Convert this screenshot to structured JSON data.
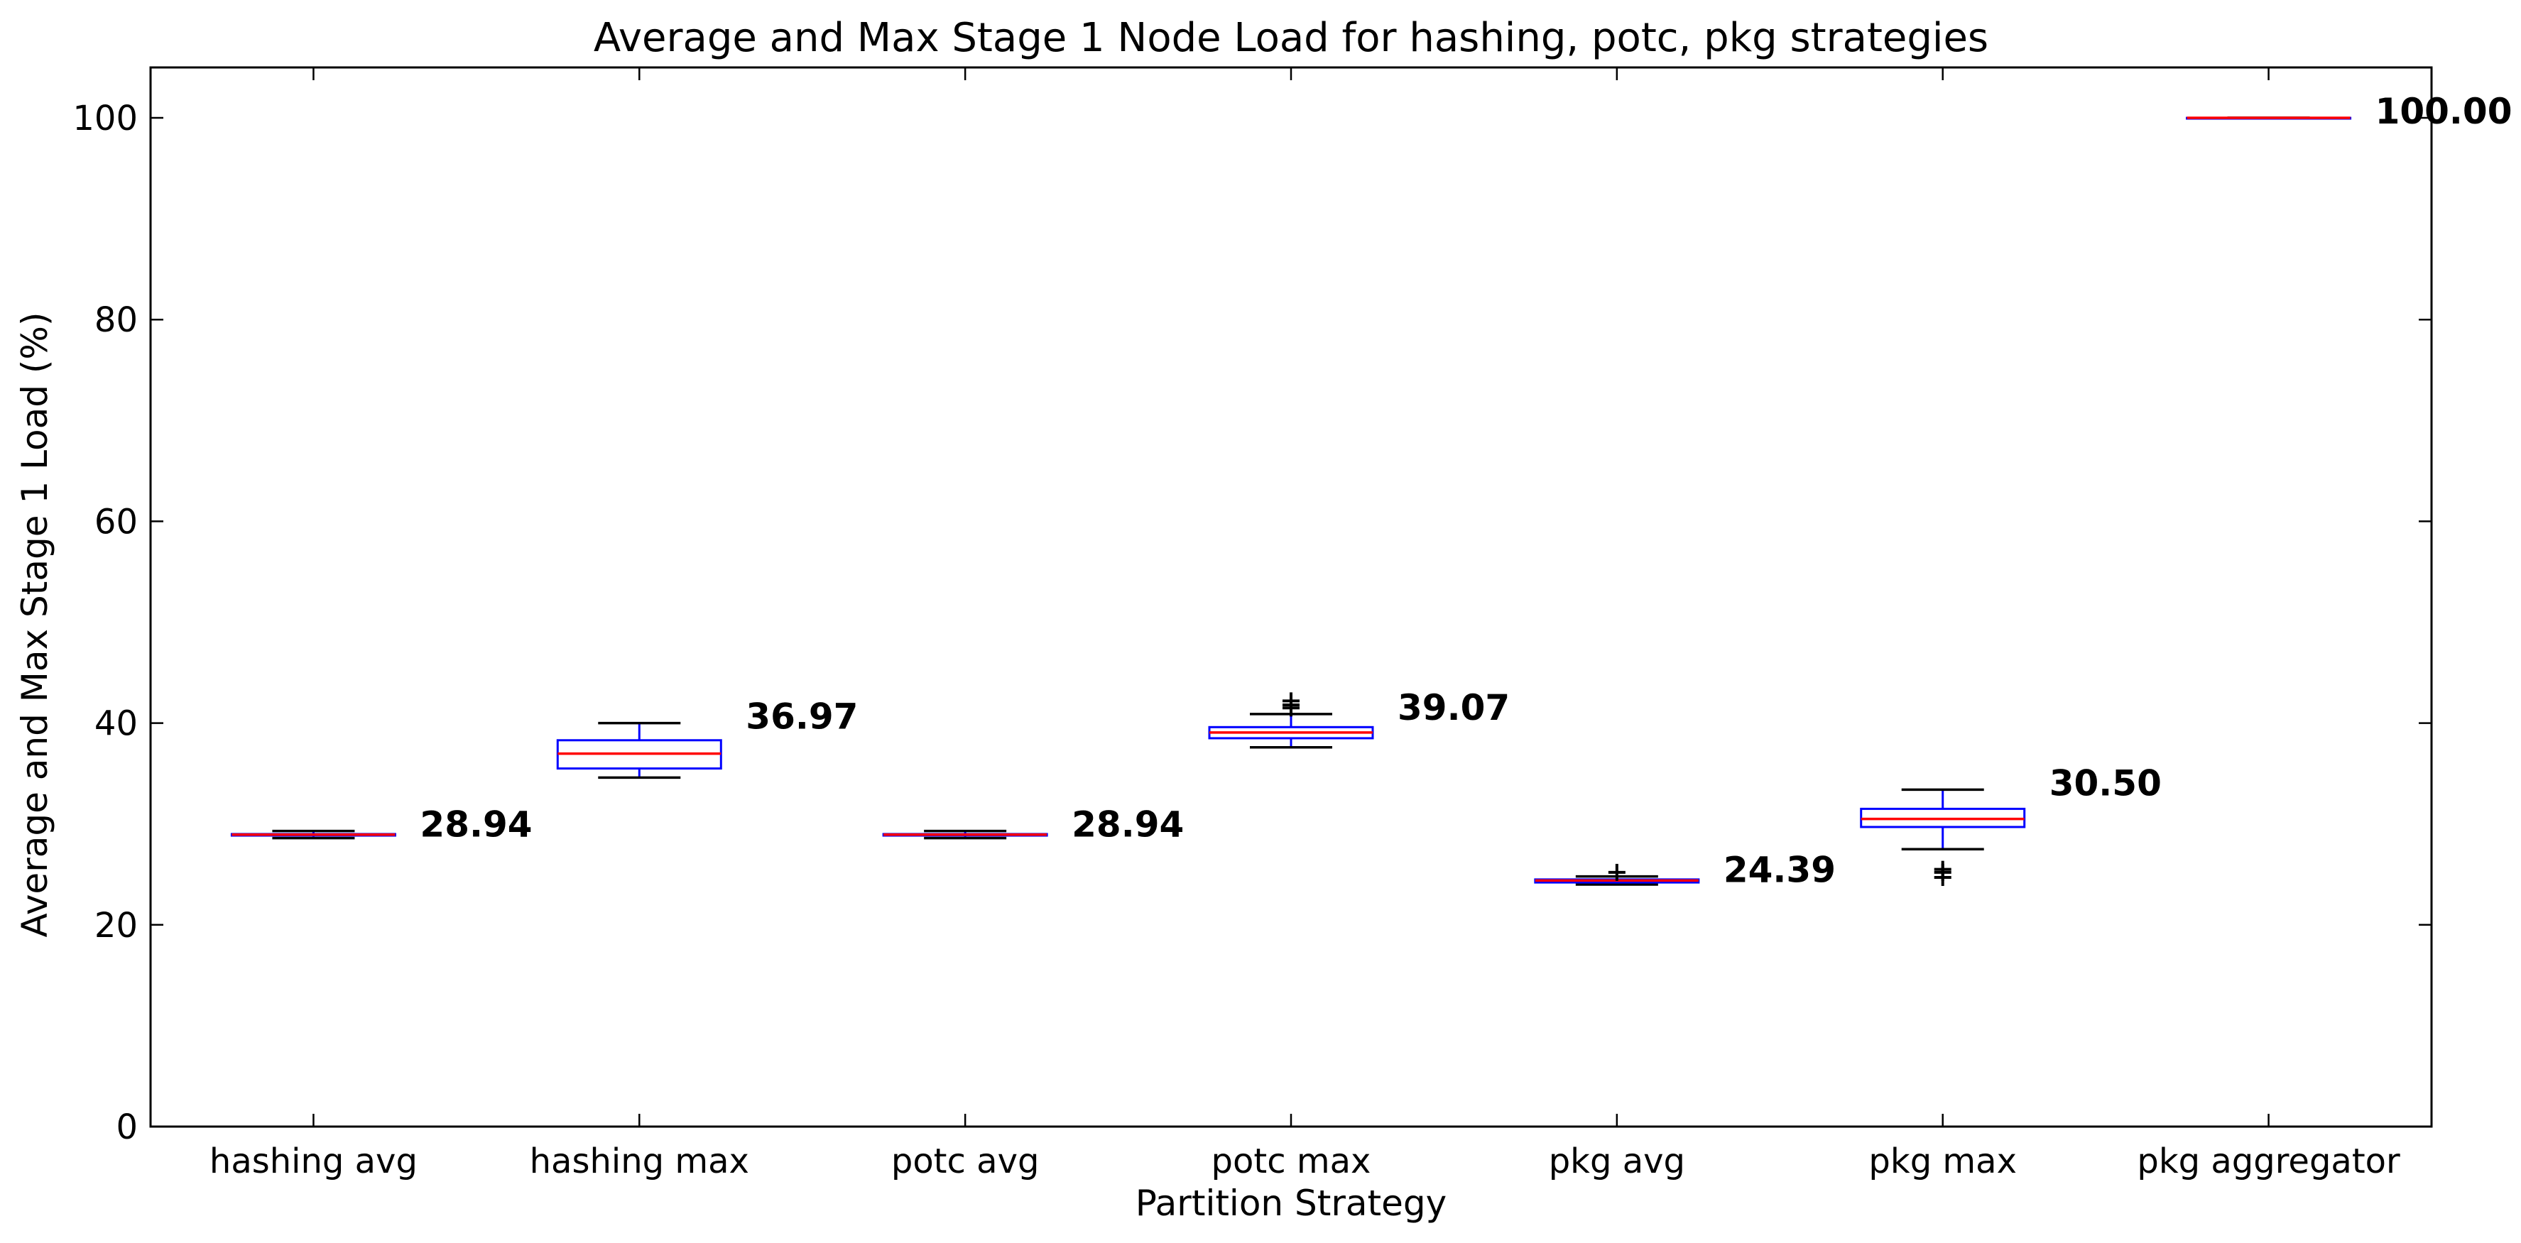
{
  "chart_data": {
    "type": "box",
    "title": "Average and Max Stage 1 Node Load for hashing, potc, pkg strategies",
    "xlabel": "Partition Strategy",
    "ylabel": "Average and Max Stage 1 Load (%)",
    "ylim": [
      0,
      105
    ],
    "yticks": [
      0,
      20,
      40,
      60,
      80,
      100
    ],
    "grid": false,
    "categories": [
      "hashing avg",
      "hashing max",
      "potc avg",
      "potc max",
      "pkg avg",
      "pkg max",
      "pkg aggregator"
    ],
    "boxes": [
      {
        "q1": 28.85,
        "median": 28.94,
        "q3": 29.0,
        "whisker_low": 28.6,
        "whisker_high": 29.3,
        "fliers": [],
        "label": "28.94"
      },
      {
        "q1": 35.5,
        "median": 36.97,
        "q3": 38.3,
        "whisker_low": 34.6,
        "whisker_high": 40.0,
        "fliers": [],
        "label": "36.97"
      },
      {
        "q1": 28.85,
        "median": 28.94,
        "q3": 29.0,
        "whisker_low": 28.6,
        "whisker_high": 29.3,
        "fliers": [],
        "label": "28.94"
      },
      {
        "q1": 38.5,
        "median": 39.07,
        "q3": 39.6,
        "whisker_low": 37.6,
        "whisker_high": 40.9,
        "fliers": [
          41.5,
          41.8,
          42.2
        ],
        "label": "39.07"
      },
      {
        "q1": 24.2,
        "median": 24.39,
        "q3": 24.5,
        "whisker_low": 24.0,
        "whisker_high": 24.8,
        "fliers": [
          25.2
        ],
        "label": "24.39"
      },
      {
        "q1": 29.7,
        "median": 30.5,
        "q3": 31.5,
        "whisker_low": 27.5,
        "whisker_high": 33.4,
        "fliers": [
          25.5,
          25.2,
          24.7
        ],
        "label": "30.50"
      },
      {
        "q1": 100.0,
        "median": 100.0,
        "q3": 100.0,
        "whisker_low": 100.0,
        "whisker_high": 100.0,
        "fliers": [],
        "label": "100.00"
      }
    ],
    "colors": {
      "box": "#0000ff",
      "median": "#ff0000",
      "whisker": "#000000",
      "flier": "#000000"
    }
  }
}
